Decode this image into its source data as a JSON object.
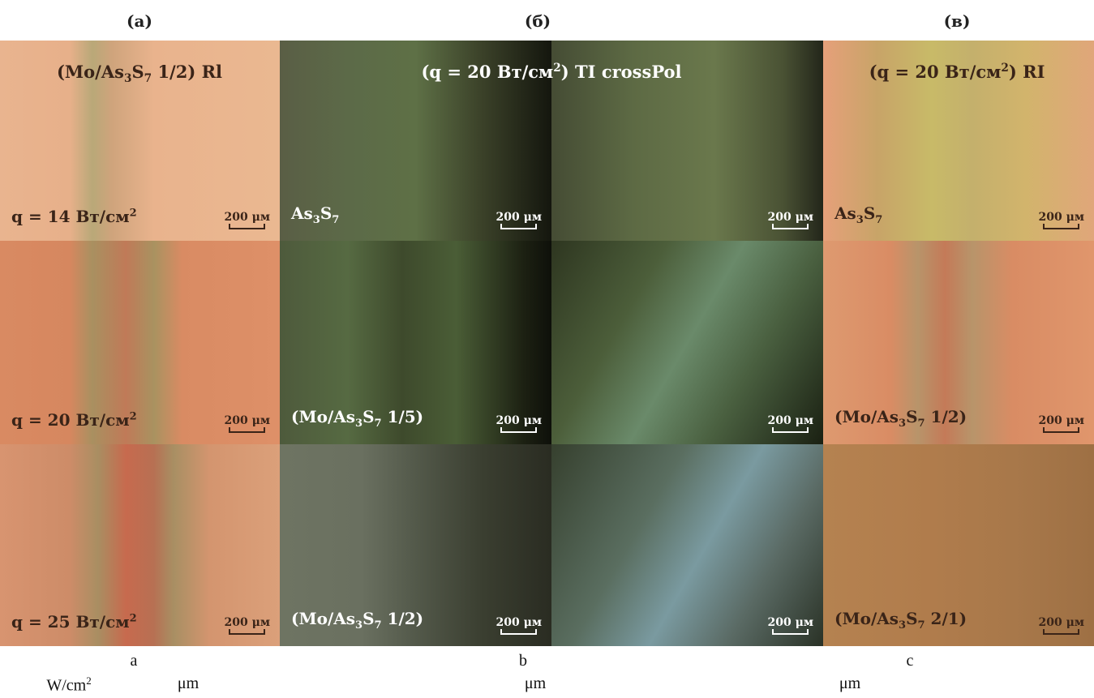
{
  "headings": [
    "(а)",
    "(б)",
    "(в)"
  ],
  "titles": {
    "a": [
      "(Mo/As",
      {
        "text": "3",
        "style": "sub"
      },
      "S",
      {
        "text": "7",
        "style": "sub"
      },
      " 1/2) Rl"
    ],
    "b": [
      "(q = 20 Вт/см",
      {
        "text": "2",
        "style": "sup"
      },
      ") TI crossPol"
    ],
    "c": [
      "(q = 20 Вт/см",
      {
        "text": "2",
        "style": "sup"
      },
      ") RI"
    ]
  },
  "tiles": [
    [
      {
        "label": [
          "q = 14 Вт/см",
          {
            "text": "2",
            "style": "sup"
          }
        ],
        "scale": "200 μм"
      },
      {
        "label": [
          "q = 20 Вт/см",
          {
            "text": "2",
            "style": "sup"
          }
        ],
        "scale": "200 μм"
      },
      {
        "label": [
          "q = 25 Вт/см",
          {
            "text": "2",
            "style": "sup"
          }
        ],
        "scale": "200 μм"
      }
    ],
    [
      {
        "label": [
          "As",
          {
            "text": "3",
            "style": "sub"
          },
          "S",
          {
            "text": "7",
            "style": "sub"
          }
        ],
        "scale": "200 μм"
      },
      {
        "label": [
          "(Mo/As",
          {
            "text": "3",
            "style": "sub"
          },
          "S",
          {
            "text": "7",
            "style": "sub"
          },
          " 1/5)"
        ],
        "scale": "200 μм"
      },
      {
        "label": [
          "(Mo/As",
          {
            "text": "3",
            "style": "sub"
          },
          "S",
          {
            "text": "7",
            "style": "sub"
          },
          " 1/2)"
        ],
        "scale": "200 μм"
      }
    ],
    [
      {
        "scale": "200 μм"
      },
      {
        "scale": "200 μм"
      },
      {
        "scale": "200 μм"
      }
    ],
    [
      {
        "label": [
          "As",
          {
            "text": "3",
            "style": "sub"
          },
          "S",
          {
            "text": "7",
            "style": "sub"
          }
        ],
        "scale": "200 μм"
      },
      {
        "label": [
          "(Mo/As",
          {
            "text": "3",
            "style": "sub"
          },
          "S",
          {
            "text": "7",
            "style": "sub"
          },
          " 1/2)"
        ],
        "scale": "200 μм"
      },
      {
        "label": [
          "(Mo/As",
          {
            "text": "3",
            "style": "sub"
          },
          "S",
          {
            "text": "7",
            "style": "sub"
          },
          " 2/1)"
        ],
        "scale": "200 μм"
      }
    ]
  ],
  "captions": [
    "a",
    "b",
    "c"
  ],
  "units": [
    [
      "W/cm",
      {
        "text": "2",
        "style": "sup"
      }
    ],
    [
      "μm"
    ],
    [
      "μm"
    ],
    [
      "μm"
    ]
  ]
}
